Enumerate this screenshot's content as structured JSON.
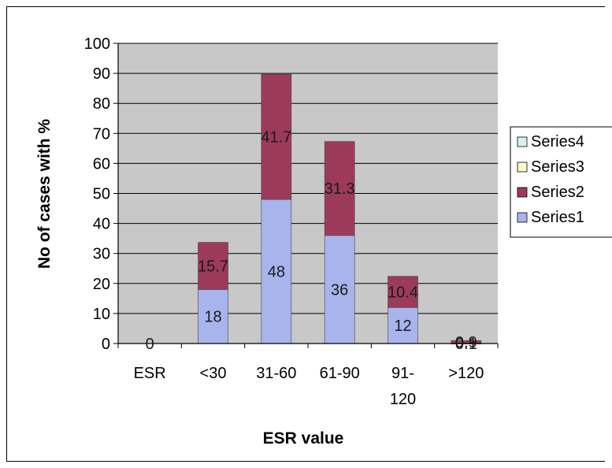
{
  "chart_data": {
    "type": "bar",
    "stacked": true,
    "title": "",
    "xlabel": "ESR value",
    "ylabel": "No of cases with %",
    "ylim": [
      0,
      100
    ],
    "yticks": [
      "0",
      "10",
      "20",
      "30",
      "40",
      "50",
      "60",
      "70",
      "80",
      "90",
      "100"
    ],
    "grid": true,
    "legend_position": "right",
    "categories": [
      "ESR",
      "<30",
      "31-60",
      "61-90",
      "91-\n120",
      ">120"
    ],
    "series": [
      {
        "name": "Series1",
        "color": "#a8b4ec",
        "values": [
          0,
          18,
          48,
          36,
          12,
          0.1
        ],
        "labels": [
          "0",
          "18",
          "48",
          "36",
          "12",
          "0.1"
        ]
      },
      {
        "name": "Series2",
        "color": "#9c3a5a",
        "values": [
          0,
          15.7,
          41.7,
          31.3,
          10.4,
          0.9
        ],
        "labels": [
          "",
          "15.7",
          "41.7",
          "31.3",
          "10.4",
          "0.9"
        ]
      },
      {
        "name": "Series3",
        "color": "#fdfbc8",
        "values": [
          0,
          0,
          0,
          0,
          0,
          0
        ],
        "labels": []
      },
      {
        "name": "Series4",
        "color": "#d8f2f4",
        "values": [
          0,
          0,
          0,
          0,
          0,
          0
        ],
        "labels": []
      }
    ],
    "legend_order": [
      "Series4",
      "Series3",
      "Series2",
      "Series1"
    ],
    "plot_background": "#c8c8c8",
    "gridline_color": "#000000"
  }
}
